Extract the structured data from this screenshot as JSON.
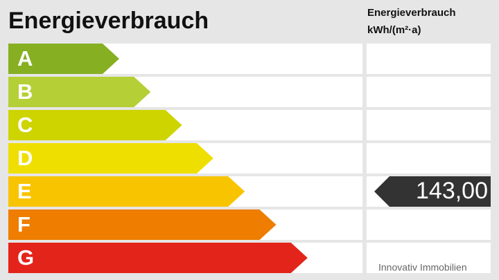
{
  "header": {
    "title": "Energieverbrauch",
    "unit_title": "Energieverbrauch",
    "unit": "kWh/(m²·a)"
  },
  "classes": [
    {
      "label": "A",
      "color": "#86b022"
    },
    {
      "label": "B",
      "color": "#b5cf36"
    },
    {
      "label": "C",
      "color": "#cdd400"
    },
    {
      "label": "D",
      "color": "#efdf00"
    },
    {
      "label": "E",
      "color": "#f8c400"
    },
    {
      "label": "F",
      "color": "#ee7d00"
    },
    {
      "label": "G",
      "color": "#e3241b"
    }
  ],
  "marker": {
    "class": "E",
    "value": "143,00"
  },
  "footer": "Innovativ Immobilien"
}
